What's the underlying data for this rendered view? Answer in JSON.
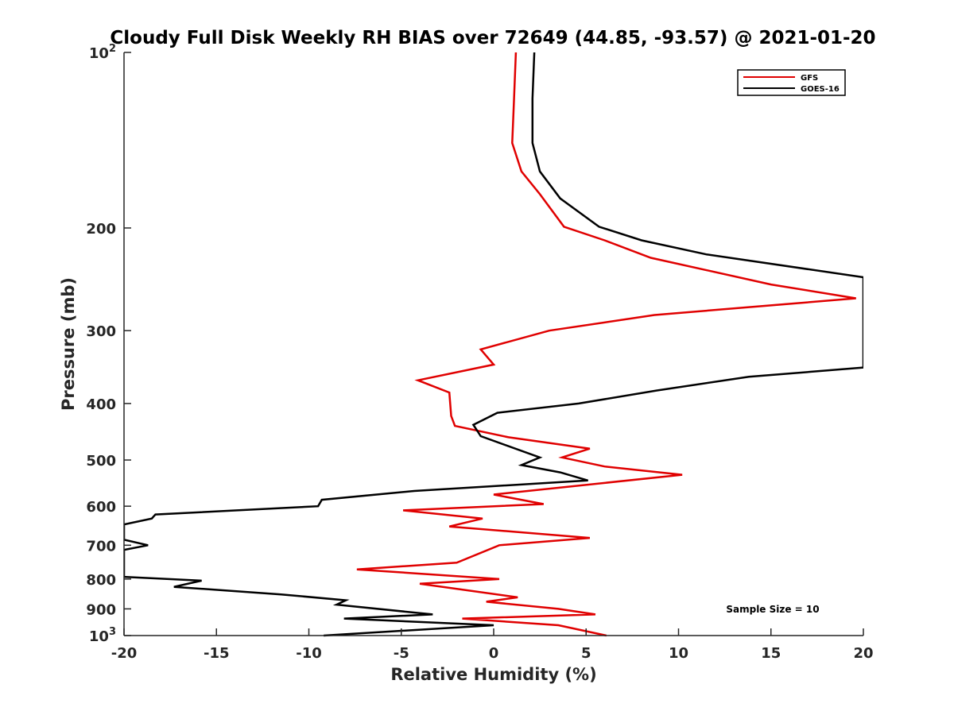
{
  "chart_data": {
    "type": "line",
    "title": "Cloudy Full Disk Weekly RH BIAS over 72649 (44.85, -93.57) @ 2021-01-20",
    "xlabel": "Relative Humidity (%)",
    "ylabel": "Pressure (mb)",
    "xlim": [
      -20,
      20
    ],
    "ylim": [
      100,
      1000
    ],
    "y_scale": "log",
    "y_reversed": true,
    "x_ticks": [
      {
        "value": -20,
        "label": "-20"
      },
      {
        "value": -15,
        "label": "-15"
      },
      {
        "value": -10,
        "label": "-10"
      },
      {
        "value": -5,
        "label": "-5"
      },
      {
        "value": 0,
        "label": "0"
      },
      {
        "value": 5,
        "label": "5"
      },
      {
        "value": 10,
        "label": "10"
      },
      {
        "value": 15,
        "label": "15"
      },
      {
        "value": 20,
        "label": "20"
      }
    ],
    "y_ticks": [
      {
        "value": 100,
        "base": "10",
        "exp": "2"
      },
      {
        "value": 200,
        "base": "200",
        "exp": ""
      },
      {
        "value": 300,
        "base": "300",
        "exp": ""
      },
      {
        "value": 400,
        "base": "400",
        "exp": ""
      },
      {
        "value": 500,
        "base": "500",
        "exp": ""
      },
      {
        "value": 600,
        "base": "600",
        "exp": ""
      },
      {
        "value": 700,
        "base": "700",
        "exp": ""
      },
      {
        "value": 800,
        "base": "800",
        "exp": ""
      },
      {
        "value": 900,
        "base": "900",
        "exp": ""
      },
      {
        "value": 1000,
        "base": "10",
        "exp": "3"
      }
    ],
    "grid": false,
    "legend_position": "top-right",
    "annotation": "Sample Size = 10",
    "series": [
      {
        "name": "GFS",
        "color": "#e00000",
        "points": [
          [
            1.2,
            100
          ],
          [
            1.1,
            120
          ],
          [
            1.0,
            143
          ],
          [
            1.5,
            160
          ],
          [
            2.5,
            175
          ],
          [
            3.8,
            199
          ],
          [
            6.0,
            210
          ],
          [
            8.5,
            225
          ],
          [
            15.0,
            250
          ],
          [
            19.6,
            264
          ],
          [
            8.7,
            282
          ],
          [
            3.0,
            300
          ],
          [
            -0.7,
            323
          ],
          [
            0.0,
            343
          ],
          [
            -4.1,
            365
          ],
          [
            -2.4,
            383
          ],
          [
            -2.3,
            420
          ],
          [
            -2.1,
            437
          ],
          [
            0.8,
            457
          ],
          [
            5.2,
            478
          ],
          [
            3.7,
            495
          ],
          [
            6.0,
            513
          ],
          [
            10.2,
            530
          ],
          [
            0.0,
            573
          ],
          [
            2.7,
            595
          ],
          [
            -4.9,
            610
          ],
          [
            -0.6,
            630
          ],
          [
            -2.4,
            650
          ],
          [
            5.2,
            680
          ],
          [
            0.3,
            700
          ],
          [
            -2.0,
            750
          ],
          [
            -7.4,
            770
          ],
          [
            0.3,
            800
          ],
          [
            -4.0,
            815
          ],
          [
            1.3,
            860
          ],
          [
            -0.4,
            875
          ],
          [
            3.5,
            900
          ],
          [
            5.5,
            920
          ],
          [
            -1.7,
            935
          ],
          [
            3.5,
            960
          ],
          [
            6.1,
            1000
          ]
        ]
      },
      {
        "name": "GOES-16",
        "color": "#000000",
        "points": [
          [
            2.2,
            100
          ],
          [
            2.1,
            120
          ],
          [
            2.1,
            143
          ],
          [
            2.5,
            160
          ],
          [
            3.6,
            178
          ],
          [
            5.7,
            199
          ],
          [
            8.0,
            210
          ],
          [
            11.5,
            222
          ],
          [
            20.0,
            243
          ],
          [
            20.0,
            347
          ],
          [
            13.8,
            360
          ],
          [
            8.8,
            380
          ],
          [
            4.6,
            400
          ],
          [
            0.2,
            415
          ],
          [
            -1.1,
            435
          ],
          [
            -0.7,
            455
          ],
          [
            2.5,
            495
          ],
          [
            1.5,
            510
          ],
          [
            3.6,
            525
          ],
          [
            5.1,
            542
          ],
          [
            -4.3,
            565
          ],
          [
            -9.3,
            585
          ],
          [
            -9.5,
            600
          ],
          [
            -18.3,
            620
          ],
          [
            -18.5,
            630
          ],
          [
            -20.0,
            645
          ],
          [
            -20.0,
            685
          ],
          [
            -18.7,
            700
          ],
          [
            -20.0,
            713
          ],
          [
            -20.0,
            793
          ],
          [
            -15.8,
            805
          ],
          [
            -17.3,
            825
          ],
          [
            -11.5,
            850
          ],
          [
            -8.0,
            870
          ],
          [
            -8.5,
            885
          ],
          [
            -3.3,
            920
          ],
          [
            -8.1,
            935
          ],
          [
            0.0,
            960
          ],
          [
            -9.2,
            1000
          ]
        ]
      }
    ]
  }
}
